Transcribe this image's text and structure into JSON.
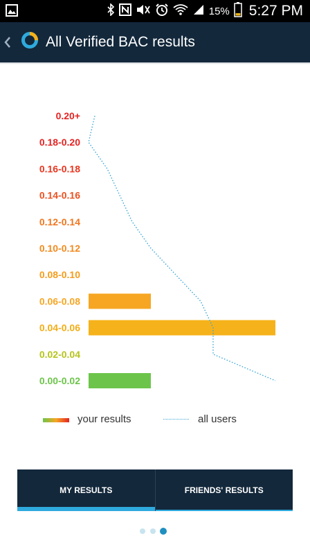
{
  "status_bar": {
    "battery_percent": "15%",
    "time": "5:27 PM",
    "icons": [
      "gallery-icon",
      "bluetooth-icon",
      "nfc-icon",
      "mute-icon",
      "alarm-icon",
      "wifi-icon",
      "signal-icon",
      "battery-icon"
    ]
  },
  "app_bar": {
    "title": "All Verified BAC results",
    "back_icon": "chevron-left-icon",
    "logo_icon": "ring-logo-icon"
  },
  "chart_data": {
    "type": "bar",
    "orientation": "horizontal",
    "categories": [
      "0.20+",
      "0.18-0.20",
      "0.16-0.18",
      "0.14-0.16",
      "0.12-0.14",
      "0.10-0.12",
      "0.08-0.10",
      "0.06-0.08",
      "0.04-0.06",
      "0.02-0.04",
      "0.00-0.02"
    ],
    "category_colors": [
      "#e42323",
      "#e42323",
      "#e8361f",
      "#ec5121",
      "#f0761f",
      "#f28a1e",
      "#f59c1d",
      "#f6a623",
      "#f2ad16",
      "#b5c41d",
      "#6cc54a"
    ],
    "series": [
      {
        "name": "your results",
        "values": [
          0,
          0,
          0,
          0,
          0,
          0,
          0,
          1,
          3,
          0,
          1
        ],
        "bar_colors": [
          "#e42323",
          "#e42323",
          "#e8361f",
          "#ec5121",
          "#f0761f",
          "#f28a1e",
          "#f59c1d",
          "#f6a623",
          "#f6b21a",
          "#b5c41d",
          "#6cc54a"
        ]
      },
      {
        "name": "all users",
        "style": "dotted-line",
        "color": "#3aa6d6",
        "values": [
          0.1,
          0,
          0.3,
          0.5,
          0.7,
          1.0,
          1.4,
          1.8,
          2.0,
          2.0,
          3.0
        ]
      }
    ],
    "xlim": [
      0,
      3
    ],
    "grid": false,
    "legend": "bottom"
  },
  "legend": {
    "your_results": "your results",
    "all_users": "all users"
  },
  "tabs": [
    {
      "label": "MY RESULTS",
      "active": true
    },
    {
      "label": "FRIENDS' RESULTS",
      "active": false
    }
  ],
  "pager": {
    "count": 3,
    "active_index": 2
  }
}
